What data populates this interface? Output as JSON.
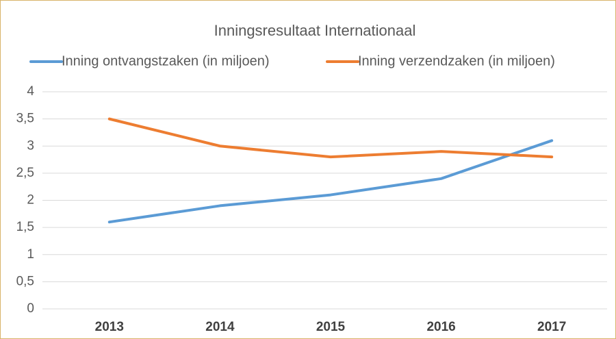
{
  "chart_data": {
    "type": "line",
    "title": "Inningsresultaat  Internationaal",
    "categories": [
      "2013",
      "2014",
      "2015",
      "2016",
      "2017"
    ],
    "series": [
      {
        "name": "Inning ontvangstzaken (in miljoen)",
        "color": "#5b9bd5",
        "values": [
          1.6,
          1.9,
          2.1,
          2.4,
          3.1
        ]
      },
      {
        "name": "Inning verzendzaken (in miljoen)",
        "color": "#ed7d31",
        "values": [
          3.5,
          3.0,
          2.8,
          2.9,
          2.8
        ]
      }
    ],
    "ylim": [
      0,
      4
    ],
    "yticks": [
      0,
      {
        "value": 0.5,
        "label": "0,5"
      },
      1,
      {
        "value": 1.5,
        "label": "1,5"
      },
      2,
      {
        "value": 2.5,
        "label": "2,5"
      },
      3,
      {
        "value": 3.5,
        "label": "3,5"
      },
      4
    ],
    "grid": true,
    "legend": "top"
  }
}
